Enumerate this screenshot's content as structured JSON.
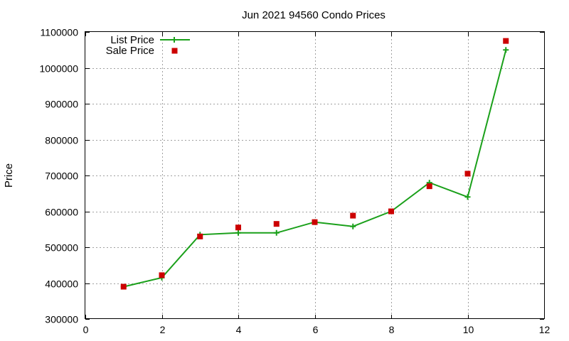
{
  "chart_data": {
    "type": "line",
    "title": "Jun 2021 94560 Condo Prices",
    "xlabel": "",
    "ylabel": "Price",
    "xlim": [
      0,
      12
    ],
    "ylim": [
      300000,
      1100000
    ],
    "xticks": [
      0,
      2,
      4,
      6,
      8,
      10,
      12
    ],
    "yticks": [
      300000,
      400000,
      500000,
      600000,
      700000,
      800000,
      900000,
      1000000,
      1100000
    ],
    "grid": true,
    "legend_position": "top-left",
    "series": [
      {
        "name": "List Price",
        "style": "line-with-plus-markers",
        "color": "#1aa01a",
        "x": [
          1,
          2,
          3,
          4,
          5,
          6,
          7,
          8,
          9,
          10,
          11
        ],
        "y": [
          390000,
          415000,
          535000,
          540000,
          540000,
          570000,
          558000,
          600000,
          680000,
          640000,
          1050000
        ]
      },
      {
        "name": "Sale Price",
        "style": "square-markers",
        "color": "#cc0000",
        "x": [
          1,
          2,
          3,
          4,
          5,
          6,
          7,
          8,
          9,
          10,
          11
        ],
        "y": [
          390000,
          422000,
          530000,
          555000,
          565000,
          570000,
          588000,
          600000,
          670000,
          705000,
          1075000
        ]
      }
    ]
  }
}
